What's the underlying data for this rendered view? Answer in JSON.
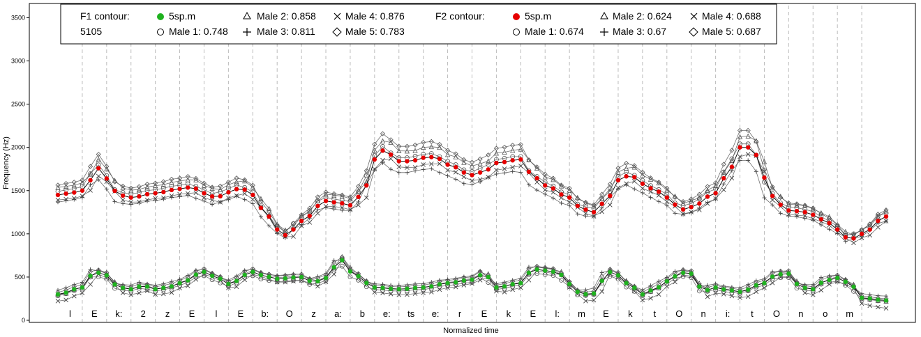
{
  "chart_data": {
    "type": "line",
    "xlabel": "Normalized time",
    "ylabel": "Frequency (Hz)",
    "ylim": [
      0,
      3600
    ],
    "xlim": [
      0,
      34
    ],
    "yticks": [
      0,
      500,
      1000,
      1500,
      2000,
      2500,
      3000,
      3500
    ],
    "segments": [
      "l",
      "E",
      "k:",
      "2",
      "z",
      "E",
      "l",
      "E",
      "b:",
      "O",
      "z",
      "a:",
      "b",
      "e:",
      "ts",
      "e:",
      "r",
      "E",
      "k",
      "E",
      "l:",
      "m",
      "E",
      "k",
      "t",
      "O",
      "n",
      "i:",
      "t",
      "O",
      "n",
      "o",
      "m"
    ],
    "legend": {
      "f1_header": "F1 contour:",
      "f1_sub": "5105",
      "f1_main": "5sp.m",
      "f1_items": [
        "Male 1: 0.748",
        "Male 2: 0.858",
        "Male 3: 0.811",
        "Male 4: 0.876",
        "Male 5: 0.783"
      ],
      "f2_header": "F2 contour:",
      "f2_main": "5sp.m",
      "f2_items": [
        "Male 1: 0.674",
        "Male 2: 0.624",
        "Male 3: 0.67",
        "Male 4: 0.688",
        "Male 5: 0.687"
      ]
    },
    "colors": {
      "f1_main": "#1fb21f",
      "f2_main": "#e60000",
      "speakers": "#555555"
    },
    "f1_knots": [
      [
        0,
        300
      ],
      [
        1,
        380
      ],
      [
        1.5,
        560
      ],
      [
        2,
        520
      ],
      [
        2.5,
        380
      ],
      [
        3,
        360
      ],
      [
        3.5,
        400
      ],
      [
        4,
        360
      ],
      [
        4.5,
        380
      ],
      [
        5,
        430
      ],
      [
        6,
        560
      ],
      [
        6.5,
        500
      ],
      [
        7,
        420
      ],
      [
        8,
        560
      ],
      [
        8.5,
        510
      ],
      [
        9,
        480
      ],
      [
        10,
        500
      ],
      [
        10.5,
        440
      ],
      [
        11,
        490
      ],
      [
        11.6,
        700
      ],
      [
        12.2,
        520
      ],
      [
        13,
        380
      ],
      [
        14,
        360
      ],
      [
        15,
        380
      ],
      [
        16,
        430
      ],
      [
        17,
        470
      ],
      [
        17.5,
        540
      ],
      [
        18,
        380
      ],
      [
        19,
        430
      ],
      [
        19.5,
        590
      ],
      [
        20.5,
        560
      ],
      [
        21,
        420
      ],
      [
        21.5,
        300
      ],
      [
        22,
        310
      ],
      [
        22.6,
        560
      ],
      [
        23,
        520
      ],
      [
        23.5,
        400
      ],
      [
        24,
        300
      ],
      [
        24.5,
        360
      ],
      [
        25,
        450
      ],
      [
        25.6,
        550
      ],
      [
        26,
        540
      ],
      [
        26.5,
        340
      ],
      [
        27,
        380
      ],
      [
        27.5,
        350
      ],
      [
        28,
        330
      ],
      [
        29,
        430
      ],
      [
        29.5,
        530
      ],
      [
        30,
        540
      ],
      [
        30.5,
        380
      ],
      [
        31,
        360
      ],
      [
        31.5,
        460
      ],
      [
        32,
        490
      ],
      [
        32.5,
        430
      ],
      [
        33,
        260
      ],
      [
        34,
        230
      ]
    ],
    "f2_knots": [
      [
        0,
        1450
      ],
      [
        0.5,
        1470
      ],
      [
        1,
        1500
      ],
      [
        1.7,
        1760
      ],
      [
        2,
        1640
      ],
      [
        2.5,
        1450
      ],
      [
        3,
        1420
      ],
      [
        4,
        1470
      ],
      [
        5,
        1520
      ],
      [
        5.5,
        1540
      ],
      [
        6,
        1470
      ],
      [
        6.5,
        1420
      ],
      [
        7,
        1480
      ],
      [
        7.5,
        1530
      ],
      [
        8,
        1450
      ],
      [
        8.5,
        1250
      ],
      [
        9,
        1050
      ],
      [
        9.4,
        980
      ],
      [
        10,
        1150
      ],
      [
        11,
        1380
      ],
      [
        11.5,
        1360
      ],
      [
        12,
        1330
      ],
      [
        12.5,
        1460
      ],
      [
        13,
        1860
      ],
      [
        13.4,
        1970
      ],
      [
        14,
        1840
      ],
      [
        14.5,
        1840
      ],
      [
        15,
        1880
      ],
      [
        15.5,
        1890
      ],
      [
        16,
        1800
      ],
      [
        17,
        1680
      ],
      [
        17.5,
        1720
      ],
      [
        18,
        1820
      ],
      [
        19,
        1860
      ],
      [
        19.5,
        1670
      ],
      [
        20,
        1560
      ],
      [
        21,
        1420
      ],
      [
        21.5,
        1290
      ],
      [
        22,
        1250
      ],
      [
        22.5,
        1380
      ],
      [
        23,
        1620
      ],
      [
        23.5,
        1680
      ],
      [
        24,
        1580
      ],
      [
        24.5,
        1510
      ],
      [
        25,
        1420
      ],
      [
        25.6,
        1280
      ],
      [
        26,
        1310
      ],
      [
        27,
        1470
      ],
      [
        27.5,
        1700
      ],
      [
        28,
        2000
      ],
      [
        28.5,
        2000
      ],
      [
        28.8,
        1850
      ],
      [
        29.2,
        1450
      ],
      [
        30,
        1270
      ],
      [
        30.5,
        1260
      ],
      [
        31,
        1220
      ],
      [
        31.5,
        1150
      ],
      [
        32,
        1050
      ],
      [
        32.5,
        930
      ],
      [
        33,
        1000
      ],
      [
        34,
        1200
      ]
    ],
    "speakers": [
      {
        "f1": 1,
        "f2": 1,
        "s1": 0.9,
        "o1": -30,
        "s2": 1.0,
        "o2": 40,
        "sh": 0.06
      },
      {
        "f1": 2,
        "f2": 2,
        "s1": 1.1,
        "o1": 10,
        "s2": 1.08,
        "o2": 90,
        "sh": -0.05
      },
      {
        "f1": 3,
        "f2": 3,
        "s1": 0.95,
        "o1": 40,
        "s2": 0.88,
        "o2": -90,
        "sh": 0.1
      },
      {
        "f1": 4,
        "f2": 4,
        "s1": 1.2,
        "o1": -50,
        "s2": 0.96,
        "o2": -60,
        "sh": -0.1
      },
      {
        "f1": 5,
        "f2": 5,
        "s1": 1.05,
        "o1": 30,
        "s2": 1.15,
        "o2": 120,
        "sh": 0.03
      }
    ]
  }
}
